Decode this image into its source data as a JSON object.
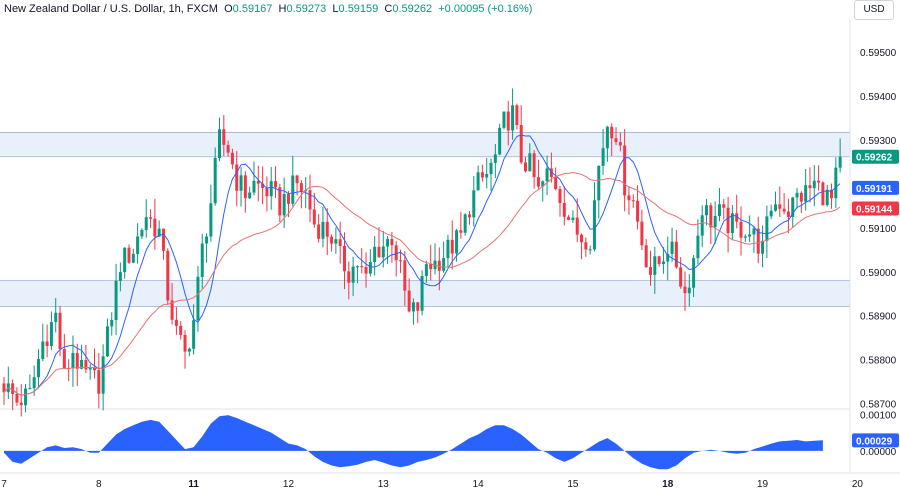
{
  "header": {
    "symbol": "New Zealand Dollar / U.S. Dollar, 1h, FXCM",
    "o_label": "O",
    "o_value": "0.59167",
    "h_label": "H",
    "h_value": "0.59273",
    "l_label": "L",
    "l_value": "0.59159",
    "c_label": "C",
    "c_value": "0.59262",
    "change": "+0.00095 (+0.16%)"
  },
  "currency_button": "USD",
  "colors": {
    "up": "#089981",
    "down": "#f23645",
    "ma_fast": "#2962ff",
    "ma_slow": "#e57373",
    "zone": "#e8f0fb",
    "zone_line": "#9fb3cc",
    "histogram": "#2962ff",
    "price_tag": "#089981"
  },
  "chart_data": [
    {
      "type": "candlestick",
      "instrument": "NZDUSD",
      "timeframe": "1h",
      "x_ticks": [
        {
          "label": "7",
          "index": 0
        },
        {
          "label": "8",
          "index": 22
        },
        {
          "label": "11",
          "index": 44
        },
        {
          "label": "12",
          "index": 66
        },
        {
          "label": "13",
          "index": 88
        },
        {
          "label": "14",
          "index": 110
        },
        {
          "label": "15",
          "index": 132
        },
        {
          "label": "18",
          "index": 154
        },
        {
          "label": "19",
          "index": 176
        },
        {
          "label": "20",
          "index": 198
        }
      ],
      "bold_tick_labels": [
        "11",
        "18"
      ],
      "y_ticks": [
        "0.58700",
        "0.58800",
        "0.58900",
        "0.59000",
        "0.59100",
        "0.59200",
        "0.59300",
        "0.59400",
        "0.59500"
      ],
      "ylim": [
        0.5869,
        0.59555
      ],
      "zones": [
        {
          "from": 0.59262,
          "to": 0.59317
        },
        {
          "from": 0.58921,
          "to": 0.5898
        }
      ],
      "price_labels": [
        {
          "text": "0.59262",
          "value": 0.59262,
          "color": "#089981"
        },
        {
          "text": "0.59191",
          "value": 0.59191,
          "color": "#2962ff"
        },
        {
          "text": "0.59144",
          "value": 0.59144,
          "color": "#f23645"
        }
      ],
      "anchors": [
        [
          0,
          0.58745
        ],
        [
          3,
          0.58705
        ],
        [
          6,
          0.5872
        ],
        [
          9,
          0.5884
        ],
        [
          12,
          0.589
        ],
        [
          14,
          0.5876
        ],
        [
          16,
          0.5882
        ],
        [
          18,
          0.5877
        ],
        [
          20,
          0.5876
        ],
        [
          22,
          0.5875
        ],
        [
          24,
          0.5885
        ],
        [
          27,
          0.5902
        ],
        [
          30,
          0.5905
        ],
        [
          33,
          0.5913
        ],
        [
          36,
          0.5909
        ],
        [
          38,
          0.5895
        ],
        [
          40,
          0.5886
        ],
        [
          42,
          0.5881
        ],
        [
          44,
          0.5889
        ],
        [
          46,
          0.5905
        ],
        [
          48,
          0.5916
        ],
        [
          50,
          0.593
        ],
        [
          52,
          0.5928
        ],
        [
          54,
          0.5921
        ],
        [
          56,
          0.5918
        ],
        [
          58,
          0.592
        ],
        [
          60,
          0.5919
        ],
        [
          62,
          0.5918
        ],
        [
          64,
          0.5915
        ],
        [
          66,
          0.5918
        ],
        [
          68,
          0.592
        ],
        [
          70,
          0.5918
        ],
        [
          72,
          0.5911
        ],
        [
          74,
          0.591
        ],
        [
          76,
          0.5908
        ],
        [
          78,
          0.5903
        ],
        [
          80,
          0.59
        ],
        [
          82,
          0.5902
        ],
        [
          84,
          0.5898
        ],
        [
          86,
          0.5905
        ],
        [
          88,
          0.5906
        ],
        [
          90,
          0.5908
        ],
        [
          92,
          0.59
        ],
        [
          94,
          0.589
        ],
        [
          96,
          0.5892
        ],
        [
          98,
          0.5902
        ],
        [
          100,
          0.5902
        ],
        [
          102,
          0.5904
        ],
        [
          104,
          0.5906
        ],
        [
          106,
          0.5908
        ],
        [
          108,
          0.5915
        ],
        [
          110,
          0.592
        ],
        [
          112,
          0.5922
        ],
        [
          114,
          0.5926
        ],
        [
          116,
          0.5934
        ],
        [
          118,
          0.5936
        ],
        [
          120,
          0.5926
        ],
        [
          122,
          0.5924
        ],
        [
          124,
          0.5918
        ],
        [
          126,
          0.5922
        ],
        [
          128,
          0.592
        ],
        [
          130,
          0.5915
        ],
        [
          132,
          0.591
        ],
        [
          134,
          0.5908
        ],
        [
          136,
          0.5908
        ],
        [
          138,
          0.5924
        ],
        [
          140,
          0.5934
        ],
        [
          142,
          0.5932
        ],
        [
          144,
          0.592
        ],
        [
          146,
          0.5916
        ],
        [
          148,
          0.5907
        ],
        [
          150,
          0.59
        ],
        [
          152,
          0.5902
        ],
        [
          154,
          0.5906
        ],
        [
          156,
          0.5902
        ],
        [
          158,
          0.5895
        ],
        [
          160,
          0.5903
        ],
        [
          162,
          0.5915
        ],
        [
          164,
          0.5912
        ],
        [
          166,
          0.5913
        ],
        [
          168,
          0.5911
        ],
        [
          170,
          0.591
        ],
        [
          172,
          0.591
        ],
        [
          174,
          0.5908
        ],
        [
          176,
          0.5905
        ],
        [
          178,
          0.5915
        ],
        [
          180,
          0.5916
        ],
        [
          182,
          0.5914
        ],
        [
          184,
          0.5917
        ],
        [
          186,
          0.5918
        ],
        [
          188,
          0.592
        ],
        [
          190,
          0.5918
        ],
        [
          192,
          0.5916
        ],
        [
          194,
          0.59262
        ]
      ]
    },
    {
      "type": "area",
      "indicator": "histogram oscillator",
      "y_ticks": [
        "0.00000",
        "0.00100"
      ],
      "ylim": [
        -0.00055,
        0.00112
      ],
      "last_value_label": "0.00029",
      "last_value": 0.00029,
      "points": [
        [
          0,
          -5e-05
        ],
        [
          2,
          -0.0003
        ],
        [
          4,
          -0.00035
        ],
        [
          6,
          -0.0002
        ],
        [
          8,
          -5e-05
        ],
        [
          10,
          0.0001
        ],
        [
          12,
          0.00015
        ],
        [
          14,
          8e-05
        ],
        [
          16,
          0.0001
        ],
        [
          18,
          5e-05
        ],
        [
          20,
          -5e-05
        ],
        [
          22,
          -5e-05
        ],
        [
          24,
          0.0002
        ],
        [
          26,
          0.00045
        ],
        [
          28,
          0.0006
        ],
        [
          30,
          0.0007
        ],
        [
          32,
          0.0008
        ],
        [
          34,
          0.00085
        ],
        [
          36,
          0.0008
        ],
        [
          38,
          0.00055
        ],
        [
          40,
          0.0003
        ],
        [
          42,
          5e-05
        ],
        [
          44,
          0.0001
        ],
        [
          46,
          0.0004
        ],
        [
          48,
          0.00075
        ],
        [
          50,
          0.00095
        ],
        [
          52,
          0.00098
        ],
        [
          54,
          0.0009
        ],
        [
          56,
          0.0008
        ],
        [
          58,
          0.0007
        ],
        [
          60,
          0.0006
        ],
        [
          62,
          0.0005
        ],
        [
          64,
          0.00035
        ],
        [
          66,
          0.0002
        ],
        [
          68,
          0.00015
        ],
        [
          70,
          5e-05
        ],
        [
          72,
          -0.00015
        ],
        [
          74,
          -0.0003
        ],
        [
          76,
          -0.0004
        ],
        [
          78,
          -0.00045
        ],
        [
          80,
          -0.00042
        ],
        [
          82,
          -0.00038
        ],
        [
          84,
          -0.0003
        ],
        [
          86,
          -0.00025
        ],
        [
          88,
          -0.00032
        ],
        [
          90,
          -0.0004
        ],
        [
          92,
          -0.00045
        ],
        [
          94,
          -0.0004
        ],
        [
          96,
          -0.0003
        ],
        [
          98,
          -0.00025
        ],
        [
          100,
          -0.00018
        ],
        [
          102,
          -8e-05
        ],
        [
          104,
          5e-05
        ],
        [
          106,
          0.0002
        ],
        [
          108,
          0.00035
        ],
        [
          110,
          0.00045
        ],
        [
          112,
          0.0006
        ],
        [
          114,
          0.0007
        ],
        [
          116,
          0.0007
        ],
        [
          118,
          0.0006
        ],
        [
          120,
          0.00045
        ],
        [
          122,
          0.00025
        ],
        [
          124,
          5e-05
        ],
        [
          126,
          -5e-05
        ],
        [
          128,
          -0.0002
        ],
        [
          130,
          -0.0003
        ],
        [
          132,
          -0.0002
        ],
        [
          134,
          -5e-05
        ],
        [
          136,
          0.0001
        ],
        [
          138,
          0.00025
        ],
        [
          140,
          0.00035
        ],
        [
          142,
          0.0002
        ],
        [
          144,
          0.0
        ],
        [
          146,
          -0.0002
        ],
        [
          148,
          -0.00035
        ],
        [
          150,
          -0.00045
        ],
        [
          152,
          -0.0005
        ],
        [
          154,
          -0.0005
        ],
        [
          156,
          -0.0004
        ],
        [
          158,
          -0.0002
        ],
        [
          160,
          -5e-05
        ],
        [
          162,
          0.0
        ],
        [
          164,
          3e-05
        ],
        [
          166,
          0.0
        ],
        [
          168,
          -5e-05
        ],
        [
          170,
          -8e-05
        ],
        [
          172,
          -5e-05
        ],
        [
          174,
          5e-05
        ],
        [
          176,
          0.00012
        ],
        [
          178,
          0.0002
        ],
        [
          180,
          0.00026
        ],
        [
          182,
          0.00028
        ],
        [
          184,
          0.0003
        ],
        [
          186,
          0.00026
        ],
        [
          188,
          0.00028
        ],
        [
          190,
          0.00029
        ]
      ]
    }
  ]
}
